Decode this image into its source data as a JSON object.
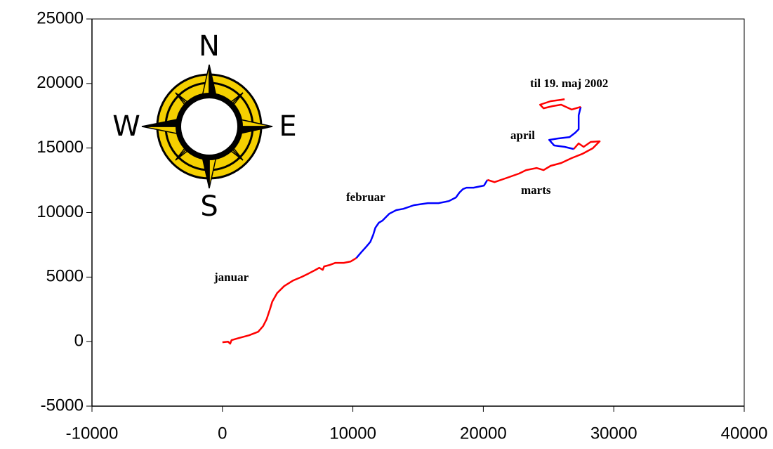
{
  "chart_data": {
    "type": "line",
    "xlim": [
      -10000,
      40000
    ],
    "xticks": [
      -10000,
      0,
      10000,
      20000,
      30000,
      40000
    ],
    "ylim": [
      -5000,
      25000
    ],
    "yticks": [
      -5000,
      0,
      5000,
      10000,
      15000,
      20000,
      25000
    ],
    "series": [
      {
        "color": "#ff0000",
        "x": [
          0,
          430,
          590,
          700,
          1240,
          2040,
          2740,
          3120,
          3390,
          3660,
          3820,
          4190,
          4730,
          5430,
          6070,
          6610,
          7150,
          7420,
          7690,
          7800,
          8230,
          8660,
          9300,
          9840,
          10270
        ],
        "values": [
          -50,
          0,
          -160,
          110,
          270,
          490,
          760,
          1200,
          1740,
          2560,
          3100,
          3760,
          4300,
          4740,
          5010,
          5280,
          5560,
          5720,
          5560,
          5830,
          5940,
          6100,
          6100,
          6210,
          6480
        ]
      },
      {
        "color": "#0000ff",
        "x": [
          10270,
          10640,
          11020,
          11340,
          11560,
          11720,
          11990,
          12260,
          12790,
          13330,
          13870,
          14680,
          15750,
          16560,
          17360,
          17900,
          18170,
          18440,
          18710,
          19250,
          20050,
          20320
        ],
        "values": [
          6480,
          6920,
          7350,
          7730,
          8280,
          8820,
          9210,
          9370,
          9910,
          10190,
          10290,
          10570,
          10730,
          10730,
          10890,
          11170,
          11550,
          11820,
          11930,
          11930,
          12090,
          12530
        ]
      },
      {
        "color": "#ff0000",
        "x": [
          20320,
          20860,
          21670,
          22740,
          23280,
          24080,
          24620,
          25160,
          25970,
          26770,
          27580,
          28390,
          28920,
          28230,
          27690,
          27310,
          26930
        ],
        "values": [
          12530,
          12360,
          12640,
          13020,
          13290,
          13450,
          13290,
          13620,
          13840,
          14220,
          14540,
          14980,
          15520,
          15470,
          15090,
          15360,
          14920
        ]
      },
      {
        "color": "#0000ff",
        "x": [
          26930,
          26230,
          25430,
          25050,
          25700,
          26610,
          27040,
          27310,
          27310,
          27470
        ],
        "values": [
          14920,
          15090,
          15200,
          15630,
          15740,
          15850,
          16180,
          16450,
          17540,
          18190
        ]
      },
      {
        "color": "#ff0000",
        "x": [
          27470,
          26770,
          25970,
          25320,
          24620,
          24350,
          25160,
          25970,
          26230
        ],
        "values": [
          18190,
          17980,
          18360,
          18250,
          18080,
          18360,
          18630,
          18740,
          18790
        ]
      }
    ],
    "annotations": [
      "januar",
      "februar",
      "marts",
      "april",
      "til 19. maj 2002"
    ]
  },
  "compass": {
    "north": "N",
    "south": "S",
    "west": "W",
    "east": "E"
  }
}
